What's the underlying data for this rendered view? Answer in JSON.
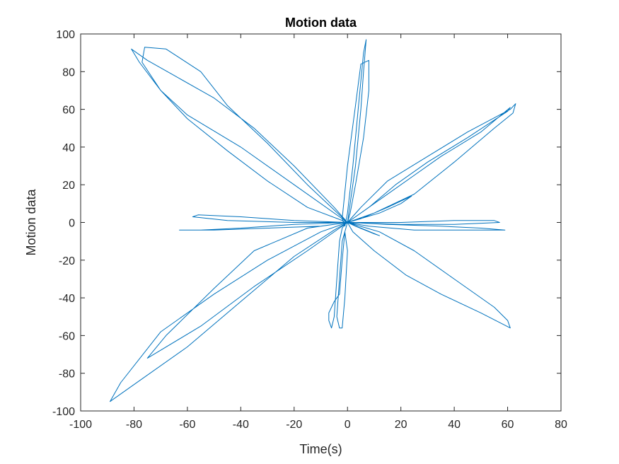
{
  "chart_data": {
    "type": "line",
    "title": "Motion data",
    "xlabel": "Time(s)",
    "ylabel": "Motion data",
    "xlim": [
      -100,
      80
    ],
    "ylim": [
      -100,
      100
    ],
    "xticks": [
      -100,
      -80,
      -60,
      -40,
      -20,
      0,
      20,
      40,
      60,
      80
    ],
    "yticks": [
      -100,
      -80,
      -60,
      -40,
      -20,
      0,
      20,
      40,
      60,
      80,
      100
    ],
    "xtick_labels": [
      "-100",
      "-80",
      "-60",
      "-40",
      "-20",
      "0",
      "20",
      "40",
      "60",
      "80"
    ],
    "ytick_labels": [
      "-100",
      "-80",
      "-60",
      "-40",
      "-20",
      "0",
      "20",
      "40",
      "60",
      "80",
      "100"
    ],
    "grid": false,
    "box": true,
    "line_color": "#0072BD",
    "series": [
      {
        "x": [
          0,
          3,
          5,
          6,
          7,
          6,
          4,
          2,
          0,
          -1,
          -2,
          0,
          3,
          5,
          8,
          8,
          6,
          3,
          1,
          0,
          -2,
          -3,
          -4,
          -3,
          -2,
          -1,
          0,
          -1,
          -2,
          -3,
          -5,
          -7,
          -7,
          -6,
          -5,
          -4,
          -3,
          -2,
          -1,
          0,
          10,
          25,
          40,
          55,
          62,
          63,
          61,
          45,
          30,
          15,
          5,
          0,
          10,
          25,
          35,
          50,
          61,
          60,
          45,
          30,
          18,
          8,
          0,
          12,
          25,
          40,
          55,
          60,
          61,
          50,
          35,
          22,
          10,
          2,
          0,
          -10,
          -30,
          -50,
          -70,
          -85,
          -89,
          -80,
          -60,
          -40,
          -20,
          -5,
          0,
          -15,
          -35,
          -50,
          -68,
          -75,
          -55,
          -35,
          -15,
          -3,
          0,
          -20,
          -40,
          -60,
          -70,
          -78,
          -81,
          -75,
          -65,
          -50,
          -35,
          -20,
          -5,
          0,
          -15,
          -30,
          -45,
          -60,
          -70,
          -77,
          -76,
          -68,
          -55,
          -45,
          -30,
          -15,
          0,
          -20,
          -40,
          -56,
          -58,
          -45,
          -20,
          0,
          20,
          40,
          55,
          57,
          40,
          20,
          0,
          -20,
          -40,
          -55,
          -63,
          -50,
          -30,
          -10,
          0,
          15,
          35,
          50,
          59,
          45,
          25,
          8,
          0,
          12,
          20,
          24,
          15,
          5,
          0,
          5,
          12,
          10,
          3,
          0
        ],
        "y": [
          0,
          30,
          60,
          80,
          97,
          90,
          60,
          30,
          5,
          -2,
          2,
          30,
          62,
          84,
          86,
          70,
          45,
          20,
          5,
          0,
          -10,
          -30,
          -50,
          -56,
          -56,
          -40,
          -15,
          -5,
          -20,
          -38,
          -42,
          -48,
          -52,
          -56,
          -50,
          -30,
          -10,
          -3,
          -1,
          0,
          5,
          15,
          32,
          50,
          58,
          63,
          60,
          48,
          35,
          22,
          8,
          0,
          10,
          25,
          35,
          48,
          61,
          59,
          45,
          32,
          20,
          8,
          0,
          -5,
          -15,
          -30,
          -45,
          -52,
          -56,
          -48,
          -38,
          -28,
          -15,
          -5,
          0,
          -5,
          -20,
          -38,
          -58,
          -85,
          -95,
          -86,
          -66,
          -42,
          -18,
          -4,
          0,
          -3,
          -15,
          -35,
          -60,
          -72,
          -55,
          -34,
          -15,
          -3,
          0,
          20,
          40,
          57,
          70,
          85,
          92,
          86,
          78,
          66,
          50,
          30,
          8,
          0,
          8,
          22,
          38,
          55,
          70,
          85,
          93,
          92,
          80,
          62,
          42,
          20,
          0,
          1,
          3,
          4,
          3,
          1,
          0,
          0,
          0,
          1,
          1,
          0,
          -1,
          -1,
          0,
          -1,
          -3,
          -4,
          -4,
          -4,
          -3,
          -2,
          0,
          -1,
          -2,
          -3,
          -4,
          -4,
          -4,
          -2,
          0,
          5,
          10,
          14,
          8,
          2,
          0,
          -3,
          -7,
          -6,
          -2,
          0
        ]
      }
    ]
  }
}
